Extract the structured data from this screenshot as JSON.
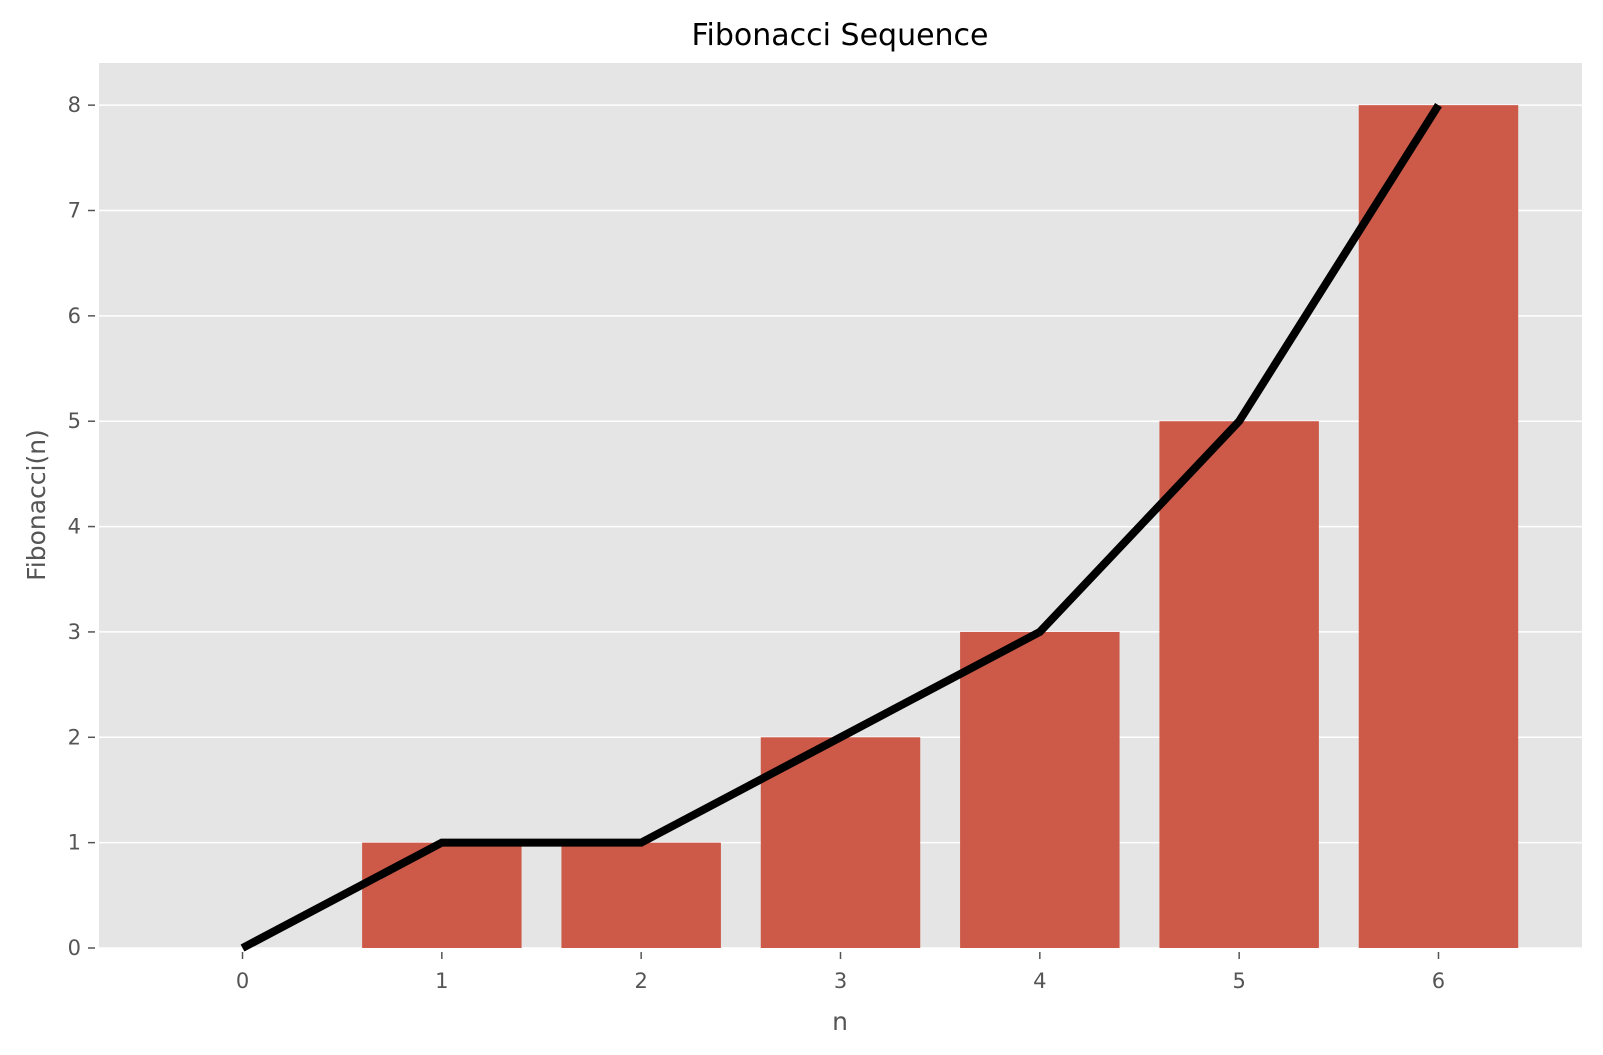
{
  "chart_data": {
    "type": "bar",
    "title": "Fibonacci Sequence",
    "xlabel": "n",
    "ylabel": "Fibonacci(n)",
    "categories": [
      0,
      1,
      2,
      3,
      4,
      5,
      6
    ],
    "values": [
      0,
      1,
      1,
      2,
      3,
      5,
      8
    ],
    "line_overlay": {
      "x": [
        0,
        1,
        2,
        3,
        4,
        5,
        6
      ],
      "y": [
        0,
        1,
        1,
        2,
        3,
        5,
        8
      ],
      "color": "#000000"
    },
    "bar_width": 0.8,
    "xlim": [
      -0.72,
      6.72
    ],
    "ylim": [
      0,
      8.4
    ],
    "xticks": [
      "0",
      "1",
      "2",
      "3",
      "4",
      "5",
      "6"
    ],
    "yticks": [
      "0",
      "1",
      "2",
      "3",
      "4",
      "5",
      "6",
      "7",
      "8"
    ],
    "grid": true,
    "colors": {
      "bar": "#CD5A48",
      "background": "#E5E5E5",
      "grid": "#FFFFFF",
      "line": "#000000"
    }
  }
}
